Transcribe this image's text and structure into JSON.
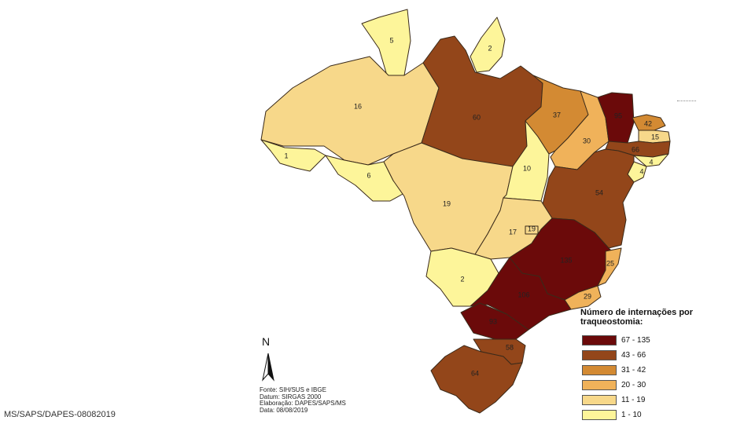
{
  "legend": {
    "title": "Número de internações por traqueostomia:",
    "classes": [
      {
        "label": "67 - 135",
        "color": "#6b0a0a"
      },
      {
        "label": "43 - 66",
        "color": "#93461a"
      },
      {
        "label": "31 - 42",
        "color": "#d38a33"
      },
      {
        "label": "20 - 30",
        "color": "#f0b25a"
      },
      {
        "label": "11 - 19",
        "color": "#f7d88a"
      },
      {
        "label": "1 - 10",
        "color": "#fdf59a"
      }
    ]
  },
  "states": [
    {
      "abbr": "RR",
      "value": "5"
    },
    {
      "abbr": "AP",
      "value": "2"
    },
    {
      "abbr": "AM",
      "value": "16"
    },
    {
      "abbr": "PA",
      "value": "60"
    },
    {
      "abbr": "AC",
      "value": "1"
    },
    {
      "abbr": "RO",
      "value": "6"
    },
    {
      "abbr": "MT",
      "value": "19"
    },
    {
      "abbr": "TO",
      "value": "10"
    },
    {
      "abbr": "MA",
      "value": "37"
    },
    {
      "abbr": "PI",
      "value": "30"
    },
    {
      "abbr": "CE",
      "value": "95"
    },
    {
      "abbr": "RN",
      "value": "42"
    },
    {
      "abbr": "PB",
      "value": "15"
    },
    {
      "abbr": "PE",
      "value": "66"
    },
    {
      "abbr": "AL",
      "value": "4"
    },
    {
      "abbr": "SE",
      "value": "4"
    },
    {
      "abbr": "BA",
      "value": "54"
    },
    {
      "abbr": "GO",
      "value": "17"
    },
    {
      "abbr": "DF",
      "value": "19"
    },
    {
      "abbr": "MG",
      "value": "135"
    },
    {
      "abbr": "ES",
      "value": "25"
    },
    {
      "abbr": "RJ",
      "value": "29"
    },
    {
      "abbr": "MS",
      "value": "2"
    },
    {
      "abbr": "SP",
      "value": "106"
    },
    {
      "abbr": "PR",
      "value": "93"
    },
    {
      "abbr": "SC",
      "value": "58"
    },
    {
      "abbr": "RS",
      "value": "64"
    }
  ],
  "north_arrow": {
    "letter": "N",
    "icon": "north-arrow-icon"
  },
  "credits": {
    "source": "Fonte: SIH/SUS e IBGE",
    "datum": "Datum: SIRGAS 2000",
    "elaboration": "Elaboração: DAPES/SAPS/MS",
    "date": "Data: 08/08/2019"
  },
  "footer_code": "MS/SAPS/DAPES-08082019"
}
